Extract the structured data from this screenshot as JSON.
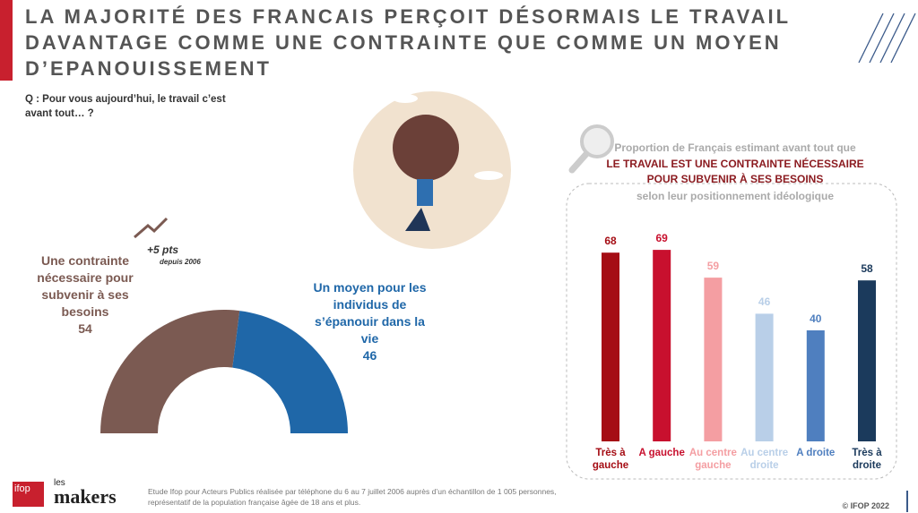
{
  "header": {
    "title": "LA MAJORITÉ DES FRANCAIS PERÇOIT DÉSORMAIS LE TRAVAIL DAVANTAGE COMME UNE CONTRAINTE QUE COMME UN MOYEN D’EPANOUISSEMENT"
  },
  "question": "Q : Pour vous aujourd’hui, le travail c’est avant tout… ?",
  "chart_data": [
    {
      "type": "donut",
      "categories": [
        "Une contrainte nécessaire pour subvenir à ses besoins",
        "Un moyen pour les individus de s’épanouir dans la vie"
      ],
      "values": [
        54,
        46
      ],
      "colors": [
        "#7b5a52",
        "#1f67a8"
      ],
      "annotations": [
        "+5 pts",
        "depuis 2006"
      ]
    },
    {
      "type": "bar",
      "title": [
        "Proportion de Français  estimant avant tout que",
        "LE TRAVAIL EST  UNE CONTRAINTE NÉCESSAIRE",
        "POUR SUBVENIR À SES BESOINS",
        "selon leur positionnement idéologique"
      ],
      "categories": [
        "Très à gauche",
        "A gauche",
        "Au centre gauche",
        "Au centre droite",
        "A droite",
        "Très à droite"
      ],
      "values": [
        68,
        69,
        59,
        46,
        40,
        58
      ],
      "colors": [
        "#a50d14",
        "#c8102e",
        "#f49ea2",
        "#b9cfe8",
        "#4f7fbf",
        "#1b3a5c"
      ]
    }
  ],
  "footer": {
    "logo": [
      "ifop",
      "les",
      "makers"
    ],
    "note": [
      "Etude Ifop pour Acteurs Publics réalisée par téléphone du 6 au 7 juillet 2006 auprès d’un échantillon de 1 005 personnes,",
      "représentatif de la population française âgée de 18 ans et plus."
    ],
    "copyright": "© IFOP 2022"
  }
}
